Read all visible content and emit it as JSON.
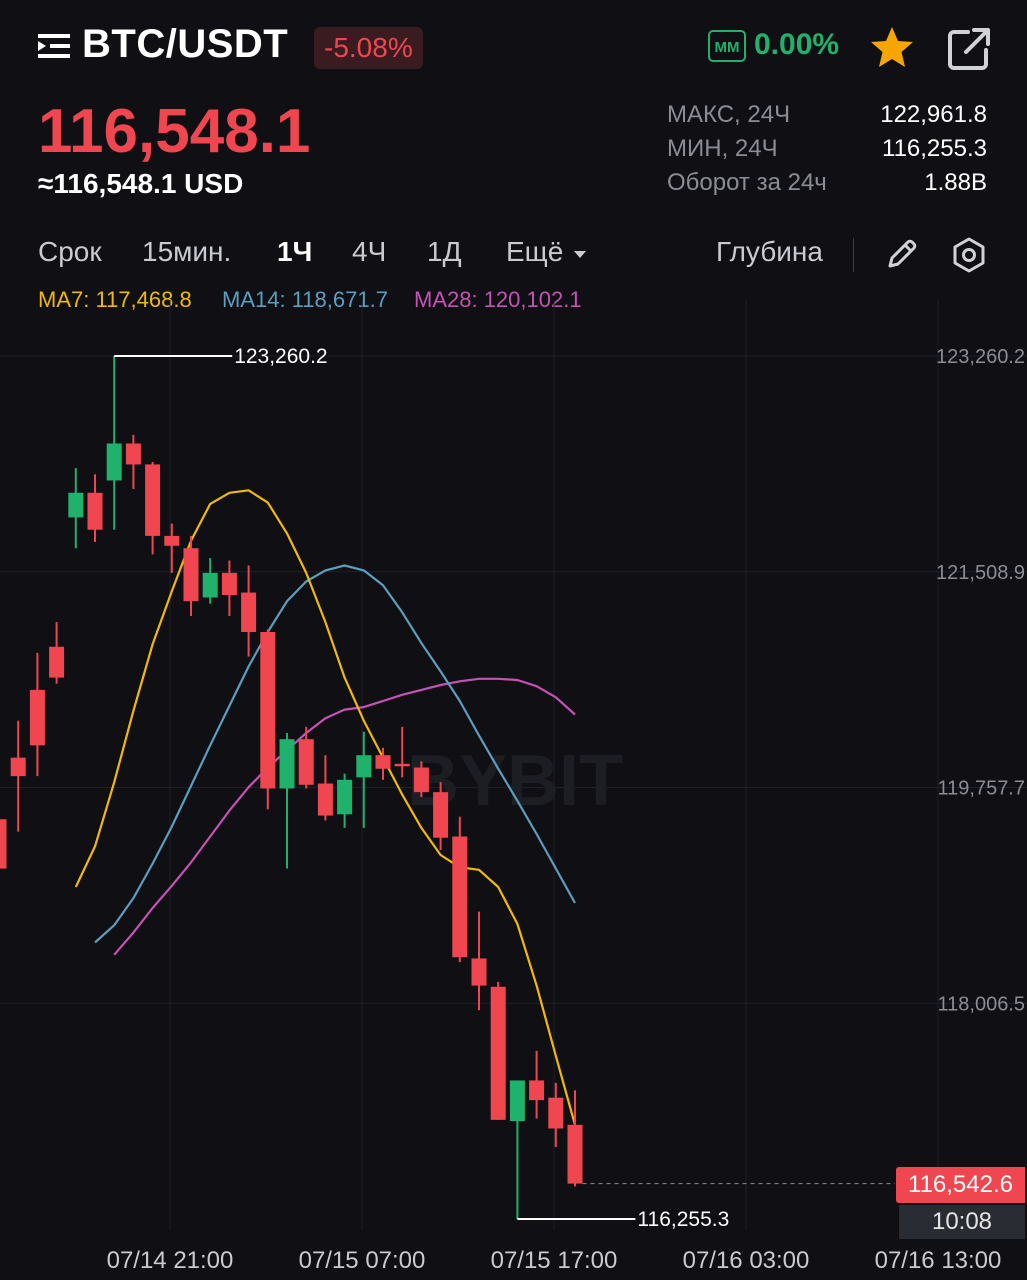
{
  "header": {
    "pair": "BTC/USDT",
    "change_percent": "-5.08%",
    "mm_label": "MM",
    "mm_value": "0.00%"
  },
  "price": {
    "last": "116,548.1",
    "usd": "≈116,548.1 USD"
  },
  "stats": [
    {
      "label": "МАКС, 24Ч",
      "value": "122,961.8"
    },
    {
      "label": "МИН, 24Ч",
      "value": "116,255.3"
    },
    {
      "label": "Оборот за 24ч",
      "value": "1.88B"
    }
  ],
  "timeframes": {
    "label": "Срок",
    "items": [
      "15мин.",
      "1Ч",
      "4Ч",
      "1Д",
      "Ещё"
    ],
    "active": "1Ч",
    "depth": "Глубина"
  },
  "ma": [
    {
      "label": "MA7: 117,468.8",
      "color": "#f0b90b"
    },
    {
      "label": "MA14: 118,671.7",
      "color": "#5a9ec0"
    },
    {
      "label": "MA28: 120,102.1",
      "color": "#c552b4"
    }
  ],
  "colors": {
    "up": "#20b26c",
    "down": "#f0464f",
    "ma7": "#f0b90b",
    "ma14": "#5a9ec0",
    "ma28": "#c552b4"
  },
  "chart_data": {
    "type": "candlestick",
    "interval": "1h",
    "watermark": "BYBIT",
    "y_ticks": [
      123260.2,
      121508.9,
      119757.7,
      118006.5
    ],
    "y_tick_labels": [
      "123,260.2",
      "121,508.9",
      "119,757.7",
      "118,006.5"
    ],
    "x_tick_labels": [
      "07/14 21:00",
      "07/15 07:00",
      "07/15 17:00",
      "07/16 03:00",
      "07/16 13:00"
    ],
    "high_marker": {
      "value": 123260.2,
      "label": "123,260.2"
    },
    "low_marker": {
      "value": 116255.3,
      "label": "116,255.3"
    },
    "current_price": {
      "value": 116542.6,
      "label": "116,542.6"
    },
    "countdown": "10:08",
    "candles": [
      {
        "o": 119500,
        "h": 119700,
        "l": 118900,
        "c": 119100
      },
      {
        "o": 120000,
        "h": 120300,
        "l": 119400,
        "c": 119850
      },
      {
        "o": 120550,
        "h": 120850,
        "l": 119850,
        "c": 120100
      },
      {
        "o": 120900,
        "h": 121100,
        "l": 120600,
        "c": 120650
      },
      {
        "o": 121950,
        "h": 122350,
        "l": 121700,
        "c": 122150
      },
      {
        "o": 122150,
        "h": 122300,
        "l": 121750,
        "c": 121850
      },
      {
        "o": 122250,
        "h": 123260.2,
        "l": 121850,
        "c": 122550
      },
      {
        "o": 122550,
        "h": 122620,
        "l": 122180,
        "c": 122380
      },
      {
        "o": 122380,
        "h": 122400,
        "l": 121650,
        "c": 121800
      },
      {
        "o": 121800,
        "h": 121900,
        "l": 121500,
        "c": 121720
      },
      {
        "o": 121700,
        "h": 121800,
        "l": 121150,
        "c": 121270
      },
      {
        "o": 121300,
        "h": 121620,
        "l": 121250,
        "c": 121500
      },
      {
        "o": 121500,
        "h": 121600,
        "l": 121150,
        "c": 121320
      },
      {
        "o": 121340,
        "h": 121560,
        "l": 120820,
        "c": 121020
      },
      {
        "o": 121020,
        "h": 121040,
        "l": 119580,
        "c": 119750
      },
      {
        "o": 119750,
        "h": 120200,
        "l": 119100,
        "c": 120150
      },
      {
        "o": 120150,
        "h": 120250,
        "l": 119750,
        "c": 119780
      },
      {
        "o": 119790,
        "h": 120020,
        "l": 119490,
        "c": 119530
      },
      {
        "o": 119540,
        "h": 119870,
        "l": 119430,
        "c": 119820
      },
      {
        "o": 119840,
        "h": 120210,
        "l": 119430,
        "c": 120020
      },
      {
        "o": 120020,
        "h": 120080,
        "l": 119820,
        "c": 119910
      },
      {
        "o": 119950,
        "h": 120250,
        "l": 119840,
        "c": 119930
      },
      {
        "o": 119920,
        "h": 119970,
        "l": 119680,
        "c": 119720
      },
      {
        "o": 119720,
        "h": 119800,
        "l": 119250,
        "c": 119350
      },
      {
        "o": 119360,
        "h": 119520,
        "l": 118340,
        "c": 118380
      },
      {
        "o": 118370,
        "h": 118750,
        "l": 117950,
        "c": 118150
      },
      {
        "o": 118140,
        "h": 118180,
        "l": 117060,
        "c": 117060
      },
      {
        "o": 117050,
        "h": 117360,
        "l": 116255.3,
        "c": 117380
      },
      {
        "o": 117380,
        "h": 117620,
        "l": 117070,
        "c": 117220
      },
      {
        "o": 117240,
        "h": 117360,
        "l": 116840,
        "c": 116990
      },
      {
        "o": 117020,
        "h": 117300,
        "l": 116520,
        "c": 116542.6
      }
    ],
    "ma7_values": [
      118950,
      119280,
      119800,
      120380,
      120920,
      121350,
      121760,
      122060,
      122150,
      122170,
      122070,
      121820,
      121500,
      121100,
      120650,
      120300,
      120000,
      119700,
      119430,
      119210,
      119110,
      119090,
      118950,
      118650,
      118150,
      117580,
      117020
    ],
    "ma14_values": [
      118500,
      118640,
      118860,
      119140,
      119440,
      119770,
      120100,
      120420,
      120740,
      121020,
      121270,
      121430,
      121520,
      121560,
      121520,
      121400,
      121180,
      120930,
      120700,
      120460,
      120180,
      119910,
      119650,
      119380,
      119100,
      118820
    ],
    "ma28_values": [
      118400,
      118580,
      118780,
      118960,
      119150,
      119360,
      119570,
      119760,
      119920,
      120060,
      120200,
      120320,
      120390,
      120410,
      120460,
      120510,
      120550,
      120590,
      120620,
      120640,
      120640,
      120630,
      120580,
      120490,
      120350
    ]
  }
}
